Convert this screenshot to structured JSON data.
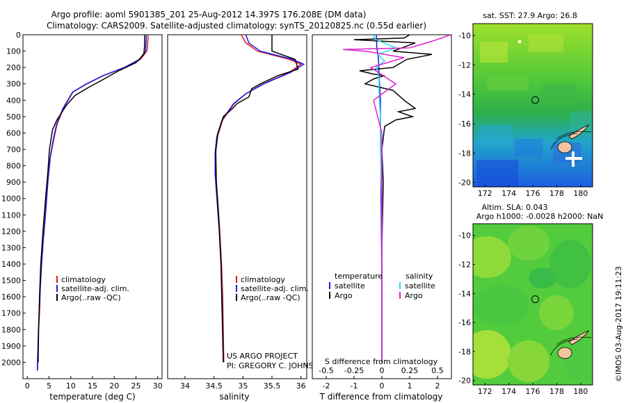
{
  "header": {
    "line1": "Argo profile: aoml 5901385_201 25-Aug-2012 14.397S 176.208E (DM data)",
    "line2": "Climatology: CARS2009. Satellite-adjusted climatology: synTS_20120825.nc (0.55d earlier)"
  },
  "side_text": "©IMOS 03-Aug-2017 19:11:23",
  "project_text": [
    "US ARGO PROJECT",
    "PI: GREGORY C. JOHNSON"
  ],
  "colors": {
    "climatology": "#e8141a",
    "satellite": "#1a1ae6",
    "argo": "#000000",
    "satellite_salinity": "#27dde8",
    "argo_salinity": "#e020d0"
  },
  "chart_data": [
    {
      "id": "temperature",
      "type": "line",
      "xlabel": "temperature (deg C)",
      "ylabel": "",
      "xlim": [
        -1,
        31
      ],
      "ylim": [
        2100,
        0
      ],
      "xticks": [
        0,
        5,
        10,
        15,
        20,
        25,
        30
      ],
      "yticks": [
        0,
        100,
        200,
        300,
        400,
        500,
        600,
        700,
        800,
        900,
        1000,
        1100,
        1200,
        1300,
        1400,
        1500,
        1600,
        1700,
        1800,
        1900,
        2000
      ],
      "legend": [
        "climatology",
        "satellite-adj. clim.",
        "Argo(..raw -QC)"
      ],
      "series": [
        {
          "name": "climatology",
          "x": [
            27.8,
            27.7,
            27.5,
            26.0,
            22.5,
            17.5,
            13.7,
            10.5,
            8.3,
            6.8,
            6.0,
            5.3,
            4.9,
            4.6,
            4.2,
            3.7,
            3.3,
            3.0,
            2.8,
            2.6,
            2.5,
            2.4,
            2.35
          ],
          "y": [
            0,
            50,
            100,
            150,
            200,
            250,
            300,
            350,
            450,
            550,
            650,
            750,
            850,
            950,
            1100,
            1250,
            1400,
            1550,
            1700,
            1800,
            1900,
            2000,
            2050
          ]
        },
        {
          "name": "satellite-adj. clim.",
          "x": [
            27.4,
            27.3,
            27.2,
            25.8,
            22.3,
            17.4,
            13.6,
            10.4,
            8.2,
            6.7,
            5.9,
            5.25,
            4.85,
            4.55,
            4.15,
            3.65,
            3.25,
            2.95,
            2.75,
            2.55,
            2.45,
            2.35,
            2.3
          ],
          "y": [
            0,
            50,
            100,
            150,
            200,
            250,
            300,
            350,
            450,
            550,
            650,
            750,
            850,
            950,
            1100,
            1250,
            1400,
            1550,
            1700,
            1800,
            1900,
            2000,
            2050
          ]
        },
        {
          "name": "Argo(..raw -QC)",
          "x": [
            27.0,
            27.0,
            26.8,
            25.0,
            21.0,
            17.0,
            14.2,
            11.0,
            9.0,
            7.8,
            6.8,
            5.8,
            5.1,
            4.7,
            4.2,
            3.6,
            3.1,
            2.8,
            2.6,
            2.5
          ],
          "y": [
            0,
            60,
            120,
            170,
            220,
            280,
            320,
            370,
            430,
            480,
            520,
            580,
            700,
            850,
            1000,
            1200,
            1400,
            1600,
            1800,
            2000
          ]
        }
      ]
    },
    {
      "id": "salinity",
      "type": "line",
      "xlabel": "salinity",
      "ylabel": "",
      "xlim": [
        33.7,
        36.1
      ],
      "ylim": [
        2100,
        0
      ],
      "xticks": [
        34,
        34.5,
        35,
        35.5,
        36
      ],
      "xtick_labels": [
        "34",
        "34.5",
        "35",
        "35.5",
        "36"
      ],
      "legend": [
        "climatology",
        "satellite-adj. clim.",
        "Argo(..raw -QC)"
      ],
      "series": [
        {
          "name": "climatology",
          "x": [
            34.97,
            35.05,
            35.25,
            35.8,
            36.0,
            35.8,
            35.35,
            35.05,
            34.85,
            34.65,
            34.56,
            34.53,
            34.53,
            34.56,
            34.6,
            34.63,
            34.65,
            34.66,
            34.67
          ],
          "y": [
            0,
            50,
            100,
            150,
            180,
            230,
            300,
            360,
            420,
            520,
            620,
            720,
            850,
            1000,
            1200,
            1400,
            1600,
            1800,
            2000
          ]
        },
        {
          "name": "satellite-adj. clim.",
          "x": [
            35.05,
            35.1,
            35.3,
            35.85,
            36.05,
            35.82,
            35.36,
            35.05,
            34.84,
            34.64,
            34.55,
            34.52,
            34.52,
            34.55,
            34.59,
            34.62,
            34.64,
            34.65,
            34.66
          ],
          "y": [
            0,
            50,
            100,
            150,
            180,
            230,
            300,
            360,
            420,
            520,
            620,
            720,
            850,
            1000,
            1200,
            1400,
            1600,
            1800,
            2000
          ]
        },
        {
          "name": "Argo(..raw -QC)",
          "x": [
            35.5,
            35.5,
            35.5,
            35.9,
            35.95,
            35.6,
            35.3,
            35.15,
            35.1,
            34.9,
            34.82,
            34.66,
            34.57,
            34.53,
            34.54,
            34.58,
            34.62,
            34.64,
            34.66
          ],
          "y": [
            0,
            60,
            100,
            150,
            210,
            250,
            300,
            330,
            380,
            420,
            450,
            500,
            600,
            700,
            900,
            1100,
            1400,
            1700,
            2000
          ]
        }
      ]
    },
    {
      "id": "difference",
      "type": "line",
      "xlabel": "T difference from climatology",
      "xlabel_top": "S difference from climatology",
      "xlim": [
        -2.5,
        2.5
      ],
      "ylim": [
        2100,
        0
      ],
      "xticks": [
        -2,
        -1,
        0,
        1,
        2
      ],
      "xtick_labels": [
        "-2",
        "-1",
        "0",
        "1",
        "2"
      ],
      "xticks_top": [
        -0.5,
        -0.25,
        0,
        0.25,
        0.5
      ],
      "legend_headers": [
        "temperature",
        "salinity"
      ],
      "legend": [
        "satellite",
        "Argo",
        "satellite",
        "Argo"
      ],
      "series": [
        {
          "name": "satellite",
          "x": [
            -0.2,
            -0.18,
            -0.12,
            -0.1,
            -0.05,
            -0.05,
            -0.03,
            -0.03,
            0,
            0
          ],
          "y": [
            0,
            80,
            150,
            250,
            400,
            600,
            800,
            1000,
            1500,
            2000
          ]
        },
        {
          "name": "Argo",
          "x": [
            1.0,
            0.8,
            -1.0,
            1.2,
            0.4,
            1.8,
            0.9,
            0.4,
            -0.8,
            -0.3,
            0.1,
            -0.3,
            -0.6,
            0.4,
            0.8,
            1.2,
            0.6,
            1.1,
            0.5,
            0.1,
            0,
            0.05,
            0,
            0
          ],
          "y": [
            0,
            20,
            30,
            50,
            100,
            120,
            150,
            200,
            220,
            240,
            250,
            270,
            300,
            340,
            400,
            450,
            470,
            500,
            520,
            560,
            700,
            900,
            1300,
            2000
          ]
        },
        {
          "name": "satellite",
          "x": [
            -0.35,
            -0.2,
            0.5,
            -0.15,
            0.1,
            -0.2,
            -0.1,
            -0.1,
            -0.08,
            -0.05,
            -0.05,
            0,
            0
          ],
          "y": [
            0,
            30,
            80,
            120,
            160,
            200,
            260,
            340,
            420,
            500,
            700,
            1000,
            2000
          ]
        },
        {
          "name": "Argo",
          "x": [
            2.5,
            1.8,
            1.0,
            -1.4,
            -0.6,
            0.8,
            -0.4,
            0.5,
            -0.3,
            0,
            0,
            0
          ],
          "y": [
            0,
            40,
            80,
            90,
            100,
            140,
            200,
            300,
            400,
            600,
            1000,
            2000
          ]
        }
      ]
    },
    {
      "id": "map_sst",
      "type": "heatmap",
      "title": "sat. SST: 27.9 Argo: 26.8",
      "xlim": [
        171,
        181
      ],
      "ylim": [
        -20.3,
        -9.2
      ],
      "xticks": [
        172,
        174,
        176,
        178,
        180
      ],
      "yticks": [
        -10,
        -12,
        -14,
        -16,
        -18,
        -20
      ],
      "float_position": {
        "lon": 176.2,
        "lat": -14.4
      }
    },
    {
      "id": "map_sla",
      "type": "heatmap",
      "title": "Altim. SLA: 0.043",
      "subtitle": "Argo h1000: -0.0028 h2000: NaN",
      "xlim": [
        171,
        181
      ],
      "ylim": [
        -20.3,
        -9.2
      ],
      "xticks": [
        172,
        174,
        176,
        178,
        180
      ],
      "yticks": [
        -10,
        -12,
        -14,
        -16,
        -18,
        -20
      ],
      "float_position": {
        "lon": 176.2,
        "lat": -14.4
      }
    }
  ]
}
